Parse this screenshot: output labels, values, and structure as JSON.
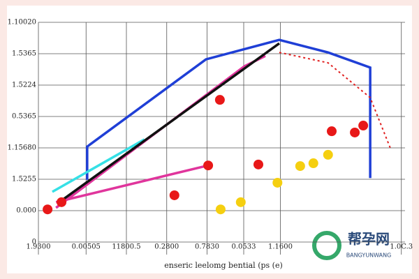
{
  "chart_data": {
    "type": "line",
    "x_label": "enseric leelomg bential (ps (e)",
    "xlim": [
      0,
      10
    ],
    "ylim": [
      0,
      7
    ],
    "grid": true,
    "xticks": [
      {
        "value": 0,
        "label": "1.9300"
      },
      {
        "value": 1.3,
        "label": "0.00505"
      },
      {
        "value": 2.4,
        "label": "11800.5"
      },
      {
        "value": 3.5,
        "label": "0.2800"
      },
      {
        "value": 4.6,
        "label": "0.7830"
      },
      {
        "value": 5.6,
        "label": "0.0533"
      },
      {
        "value": 6.6,
        "label": "1.1600"
      },
      {
        "value": 9.9,
        "label": "1.0C.3"
      }
    ],
    "yticks": [
      {
        "value": 7,
        "label": "1.10020"
      },
      {
        "value": 6,
        "label": "1.5365"
      },
      {
        "value": 5,
        "label": "1.5224"
      },
      {
        "value": 4,
        "label": "0.5365"
      },
      {
        "value": 3,
        "label": "1.15680"
      },
      {
        "value": 2,
        "label": "1.5255"
      },
      {
        "value": 1,
        "label": "0.000"
      },
      {
        "value": 0,
        "label": "0"
      }
    ],
    "series": [
      {
        "mode": "line",
        "color": "#1f3fd6",
        "x": [
          1.33,
          1.33,
          4.57,
          6.57,
          7.9,
          9.05,
          9.05
        ],
        "values": [
          1.98,
          3.04,
          5.82,
          6.44,
          6.04,
          5.56,
          2.04
        ]
      },
      {
        "mode": "line",
        "color": "#36e0e6",
        "x": [
          0.38,
          2.89
        ],
        "values": [
          1.6,
          3.27
        ]
      },
      {
        "mode": "line",
        "color": "#e0359c",
        "x": [
          0.48,
          5.62,
          6.19
        ],
        "values": [
          1.09,
          5.6,
          5.93
        ]
      },
      {
        "mode": "line",
        "color": "#e0359c",
        "x": [
          0.48,
          4.63
        ],
        "values": [
          1.27,
          2.44
        ]
      },
      {
        "mode": "line",
        "color": "#111111",
        "x": [
          0.57,
          6.57
        ],
        "values": [
          1.27,
          6.33
        ]
      },
      {
        "mode": "dashed",
        "color": "#e02020",
        "x": [
          6.57,
          7.9,
          9.05,
          9.62
        ],
        "values": [
          6.04,
          5.71,
          4.6,
          2.93
        ]
      },
      {
        "mode": "points",
        "color": "#e81818",
        "x": [
          0.25,
          0.63,
          3.71,
          4.63,
          4.95,
          6.0,
          8.0,
          8.86,
          8.63
        ],
        "values": [
          1.04,
          1.27,
          1.49,
          2.44,
          4.53,
          2.47,
          3.53,
          3.71,
          3.49
        ]
      },
      {
        "mode": "points",
        "color": "#f5cf10",
        "x": [
          4.97,
          5.52,
          6.52,
          7.14,
          7.5,
          7.9
        ],
        "values": [
          1.04,
          1.27,
          1.89,
          2.42,
          2.51,
          2.78
        ]
      }
    ]
  },
  "watermark": {
    "title": "帮孕网",
    "subtitle": "BANGYUNWANG"
  }
}
